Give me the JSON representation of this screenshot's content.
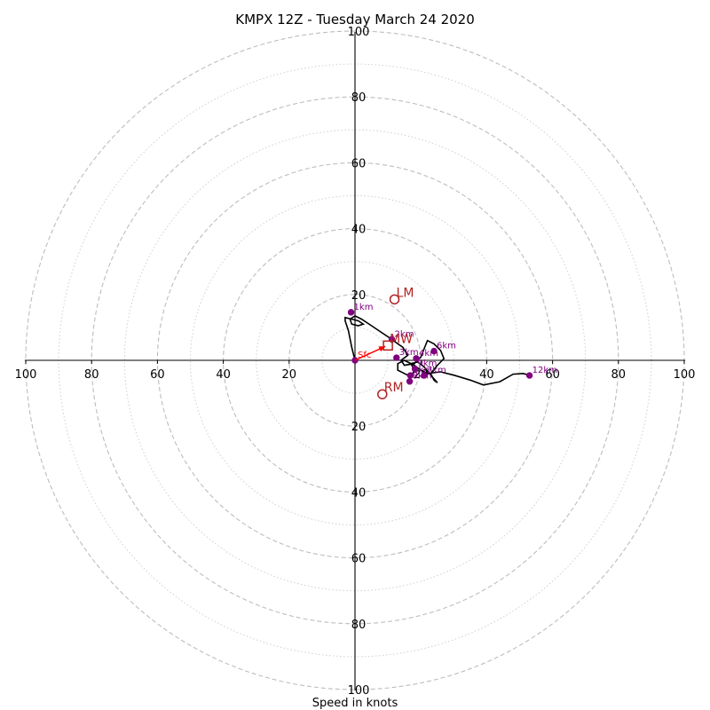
{
  "chart_data": {
    "type": "hodograph",
    "title": "KMPX 12Z - Tuesday March 24 2020",
    "xlabel": "Speed in knots",
    "ylabel": "",
    "xlim": [
      -100,
      100
    ],
    "ylim": [
      -100,
      100
    ],
    "major_rings": [
      20,
      40,
      60,
      80,
      100
    ],
    "minor_rings": [
      10,
      30,
      50,
      70,
      90
    ],
    "ticks": [
      {
        "label": "100",
        "v": -100
      },
      {
        "label": "80",
        "v": -80
      },
      {
        "label": "60",
        "v": -60
      },
      {
        "label": "40",
        "v": -40
      },
      {
        "label": "20",
        "v": -20
      },
      {
        "label": "20",
        "v": 20
      },
      {
        "label": "40",
        "v": 40
      },
      {
        "label": "60",
        "v": 60
      },
      {
        "label": "80",
        "v": 80
      },
      {
        "label": "100",
        "v": 100
      }
    ],
    "hodograph_trace": [
      [
        0,
        0
      ],
      [
        -1,
        4
      ],
      [
        -2,
        9
      ],
      [
        -3,
        12
      ],
      [
        -3,
        13
      ],
      [
        -1,
        12.5
      ],
      [
        1,
        12
      ],
      [
        2.5,
        11
      ],
      [
        1,
        10.5
      ],
      [
        -1,
        11
      ],
      [
        -1.5,
        12.5
      ],
      [
        0,
        13.5
      ],
      [
        2,
        12.5
      ],
      [
        5,
        10.5
      ],
      [
        8,
        8.5
      ],
      [
        11,
        6.5
      ],
      [
        13,
        5
      ],
      [
        14.5,
        4
      ],
      [
        16,
        1.5
      ],
      [
        14,
        0
      ],
      [
        15,
        -1.5
      ],
      [
        18,
        -1
      ],
      [
        20,
        1
      ],
      [
        21,
        3.5
      ],
      [
        22,
        6
      ],
      [
        24,
        5
      ],
      [
        26,
        3
      ],
      [
        27,
        0.5
      ],
      [
        25,
        -1.5
      ],
      [
        23,
        -4
      ],
      [
        24,
        -6
      ],
      [
        25,
        -6.8
      ],
      [
        23,
        -4.5
      ],
      [
        21,
        -2
      ],
      [
        19,
        -0.5
      ],
      [
        17,
        -1
      ],
      [
        18,
        -3
      ],
      [
        17,
        -5
      ],
      [
        16,
        -7
      ],
      [
        17,
        -5
      ],
      [
        15,
        -4
      ],
      [
        13,
        -3
      ],
      [
        13,
        -1
      ],
      [
        15,
        0
      ],
      [
        18,
        -1.5
      ],
      [
        20,
        -3
      ],
      [
        22,
        -4
      ],
      [
        26,
        -3.5
      ],
      [
        30,
        -4.5
      ],
      [
        35,
        -6
      ],
      [
        39,
        -7.5
      ],
      [
        44,
        -6.5
      ],
      [
        48,
        -4.2
      ],
      [
        51,
        -4
      ],
      [
        53,
        -4.5
      ]
    ],
    "height_points": [
      {
        "label": "Sfc",
        "u": 0,
        "v": 0
      },
      {
        "label": "1km",
        "u": -1.2,
        "v": 14.6
      },
      {
        "label": "2km",
        "u": 11.2,
        "v": 6.4
      },
      {
        "label": "3km",
        "u": 12.6,
        "v": 0.8
      },
      {
        "label": "4km",
        "u": 18.6,
        "v": 0.6
      },
      {
        "label": "5km",
        "u": 16.8,
        "v": -4.6
      },
      {
        "label": "6km",
        "u": 24,
        "v": 2.8
      },
      {
        "label": "7km",
        "u": 21,
        "v": -4.6
      },
      {
        "label": "8km",
        "u": 16.6,
        "v": -6.4
      },
      {
        "label": "9km",
        "u": 18.2,
        "v": -2.6
      },
      {
        "label": "12km",
        "u": 53,
        "v": -4.6
      }
    ],
    "storm_motion": [
      {
        "label": "LM",
        "u": 12,
        "v": 18.5,
        "marker": "circle"
      },
      {
        "label": "MW",
        "u": 10,
        "v": 4.5,
        "marker": "square"
      },
      {
        "label": "RM",
        "u": 8.3,
        "v": -10.3,
        "marker": "circle"
      }
    ],
    "colors": {
      "trace": "#000000",
      "points": "#800080",
      "storm": "#b22222",
      "sfc_vector": "#ff0000"
    }
  }
}
